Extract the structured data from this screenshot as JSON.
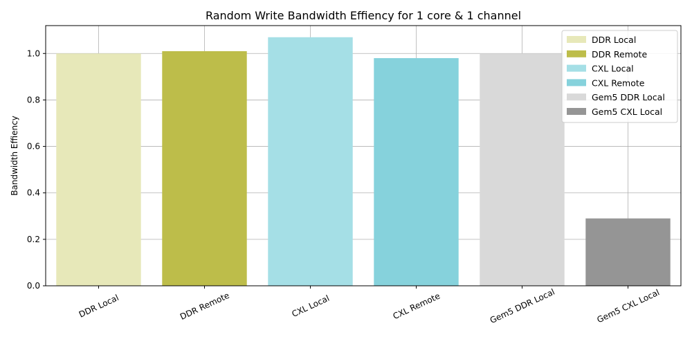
{
  "chart_data": {
    "type": "bar",
    "title": "Random Write Bandwidth Effiency for 1 core & 1 channel",
    "xlabel": "",
    "ylabel": "Bandwidth Effiency",
    "categories": [
      "DDR Local",
      "DDR Remote",
      "CXL Local",
      "CXL Remote",
      "Gem5 DDR Local",
      "Gem5 CXL Local"
    ],
    "values": [
      1.0,
      1.01,
      1.07,
      0.98,
      1.0,
      0.29
    ],
    "colors": [
      "#e7e8b9",
      "#bdbd4a",
      "#a5dfe6",
      "#86d2dc",
      "#d9d9d9",
      "#959595"
    ],
    "ylim": [
      0,
      1.12
    ],
    "yticks": [
      0.0,
      0.2,
      0.4,
      0.6,
      0.8,
      1.0
    ],
    "ytick_labels": [
      "0.0",
      "0.2",
      "0.4",
      "0.6",
      "0.8",
      "1.0"
    ],
    "grid": true,
    "legend": {
      "placement": "top-right",
      "entries": [
        "DDR Local",
        "DDR Remote",
        "CXL Local",
        "CXL Remote",
        "Gem5 DDR Local",
        "Gem5 CXL Local"
      ]
    }
  }
}
